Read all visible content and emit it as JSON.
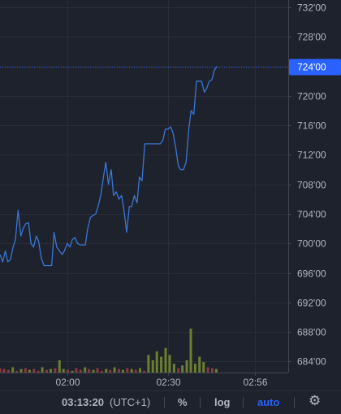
{
  "chart_data": {
    "type": "line",
    "price_axis": {
      "ticks": [
        "732'00",
        "728'00",
        "724'00",
        "720'00",
        "716'00",
        "712'00",
        "708'00",
        "704'00",
        "700'00",
        "696'00",
        "692'00",
        "688'00",
        "684'00"
      ],
      "tick_values": [
        732,
        728,
        724,
        720,
        716,
        712,
        708,
        704,
        700,
        696,
        692,
        688,
        684
      ],
      "range": [
        682.5,
        733.0
      ]
    },
    "time_axis": {
      "labels": [
        "02:00",
        "02:30",
        "02:56"
      ],
      "label_minutes": [
        120,
        150,
        176
      ],
      "range_minutes": [
        100,
        185.8
      ]
    },
    "last_price": {
      "label": "724'00",
      "value": 724.0
    },
    "series": [
      {
        "color": "#3a76d8",
        "points": [
          [
            100,
            698.5
          ],
          [
            100.8,
            697.5
          ],
          [
            101.6,
            699.0
          ],
          [
            102.3,
            697.5
          ],
          [
            103.1,
            697.8
          ],
          [
            103.9,
            699.5
          ],
          [
            104.6,
            700.5
          ],
          [
            105.4,
            704.5
          ],
          [
            106.2,
            701.0
          ],
          [
            106.9,
            702.0
          ],
          [
            107.7,
            702.7
          ],
          [
            108.5,
            702.8
          ],
          [
            109.2,
            700.0
          ],
          [
            110.0,
            699.5
          ],
          [
            110.8,
            701.0
          ],
          [
            111.5,
            700.3
          ],
          [
            112.3,
            698.0
          ],
          [
            113.1,
            697.0
          ],
          [
            113.8,
            697.0
          ],
          [
            114.6,
            697.0
          ],
          [
            115.4,
            697.0
          ],
          [
            116.1,
            701.5
          ],
          [
            116.9,
            699.5
          ],
          [
            117.7,
            699.0
          ],
          [
            118.5,
            698.5
          ],
          [
            119.2,
            699.0
          ],
          [
            120.0,
            700.0
          ],
          [
            120.8,
            699.5
          ],
          [
            121.5,
            700.5
          ],
          [
            122.3,
            700.8
          ],
          [
            123.1,
            700.0
          ],
          [
            123.8,
            699.8
          ],
          [
            124.6,
            699.8
          ],
          [
            125.4,
            699.8
          ],
          [
            126.1,
            702.0
          ],
          [
            126.9,
            703.5
          ],
          [
            127.7,
            703.8
          ],
          [
            128.5,
            704.0
          ],
          [
            129.2,
            705.0
          ],
          [
            130.0,
            706.5
          ],
          [
            130.8,
            709.0
          ],
          [
            131.5,
            711.0
          ],
          [
            132.3,
            708.0
          ],
          [
            133.1,
            710.0
          ],
          [
            133.8,
            706.5
          ],
          [
            134.6,
            707.0
          ],
          [
            135.4,
            706.0
          ],
          [
            136.2,
            706.5
          ],
          [
            136.9,
            704.5
          ],
          [
            137.7,
            701.5
          ],
          [
            138.5,
            705.0
          ],
          [
            139.2,
            705.0
          ],
          [
            140.0,
            706.5
          ],
          [
            140.8,
            705.5
          ],
          [
            141.5,
            709.0
          ],
          [
            142.3,
            708.5
          ],
          [
            143.1,
            713.5
          ],
          [
            143.8,
            713.5
          ],
          [
            144.6,
            713.5
          ],
          [
            145.4,
            713.5
          ],
          [
            146.2,
            713.5
          ],
          [
            146.9,
            713.5
          ],
          [
            147.7,
            713.5
          ],
          [
            148.5,
            714.0
          ],
          [
            149.2,
            715.5
          ],
          [
            150.0,
            715.5
          ],
          [
            150.8,
            715.8
          ],
          [
            151.5,
            715.0
          ],
          [
            152.3,
            713.0
          ],
          [
            153.1,
            710.5
          ],
          [
            153.8,
            710.0
          ],
          [
            154.6,
            710.0
          ],
          [
            155.4,
            711.0
          ],
          [
            156.2,
            715.5
          ],
          [
            156.9,
            718.0
          ],
          [
            157.7,
            717.5
          ],
          [
            158.5,
            722.0
          ],
          [
            159.2,
            722.0
          ],
          [
            160.0,
            722.0
          ],
          [
            160.8,
            720.5
          ],
          [
            161.5,
            721.0
          ],
          [
            162.3,
            722.0
          ],
          [
            163.1,
            722.2
          ],
          [
            163.8,
            723.5
          ],
          [
            164.6,
            724.0
          ]
        ]
      }
    ],
    "volume": {
      "series": [
        {
          "m": 100.0,
          "v": 5,
          "c": "red"
        },
        {
          "m": 101.2,
          "v": 4,
          "c": "red"
        },
        {
          "m": 102.5,
          "v": 3,
          "c": "red"
        },
        {
          "m": 103.8,
          "v": 6,
          "c": "green"
        },
        {
          "m": 105.0,
          "v": 2,
          "c": "red"
        },
        {
          "m": 106.3,
          "v": 4,
          "c": "green"
        },
        {
          "m": 107.6,
          "v": 5,
          "c": "red"
        },
        {
          "m": 108.8,
          "v": 3,
          "c": "green"
        },
        {
          "m": 110.1,
          "v": 4,
          "c": "red"
        },
        {
          "m": 111.4,
          "v": 2,
          "c": "red"
        },
        {
          "m": 112.6,
          "v": 6,
          "c": "green"
        },
        {
          "m": 113.9,
          "v": 3,
          "c": "red"
        },
        {
          "m": 115.1,
          "v": 4,
          "c": "green"
        },
        {
          "m": 116.4,
          "v": 5,
          "c": "red"
        },
        {
          "m": 117.7,
          "v": 14,
          "c": "green"
        },
        {
          "m": 118.9,
          "v": 4,
          "c": "green"
        },
        {
          "m": 120.2,
          "v": 3,
          "c": "red"
        },
        {
          "m": 121.5,
          "v": 2,
          "c": "green"
        },
        {
          "m": 122.7,
          "v": 5,
          "c": "red"
        },
        {
          "m": 124.0,
          "v": 3,
          "c": "red"
        },
        {
          "m": 125.3,
          "v": 6,
          "c": "green"
        },
        {
          "m": 126.5,
          "v": 4,
          "c": "red"
        },
        {
          "m": 127.8,
          "v": 3,
          "c": "green"
        },
        {
          "m": 129.0,
          "v": 5,
          "c": "red"
        },
        {
          "m": 130.3,
          "v": 2,
          "c": "red"
        },
        {
          "m": 131.6,
          "v": 4,
          "c": "green"
        },
        {
          "m": 132.8,
          "v": 3,
          "c": "red"
        },
        {
          "m": 134.1,
          "v": 6,
          "c": "green"
        },
        {
          "m": 135.4,
          "v": 4,
          "c": "red"
        },
        {
          "m": 136.6,
          "v": 3,
          "c": "green"
        },
        {
          "m": 137.9,
          "v": 5,
          "c": "red"
        },
        {
          "m": 139.2,
          "v": 4,
          "c": "green"
        },
        {
          "m": 140.4,
          "v": 3,
          "c": "red"
        },
        {
          "m": 141.7,
          "v": 5,
          "c": "green"
        },
        {
          "m": 142.9,
          "v": 2,
          "c": "red"
        },
        {
          "m": 144.2,
          "v": 20,
          "c": "green"
        },
        {
          "m": 145.5,
          "v": 14,
          "c": "green"
        },
        {
          "m": 146.7,
          "v": 24,
          "c": "green"
        },
        {
          "m": 148.0,
          "v": 18,
          "c": "green"
        },
        {
          "m": 149.3,
          "v": 28,
          "c": "green"
        },
        {
          "m": 150.5,
          "v": 20,
          "c": "green"
        },
        {
          "m": 151.8,
          "v": 10,
          "c": "green"
        },
        {
          "m": 153.1,
          "v": 5,
          "c": "red"
        },
        {
          "m": 154.3,
          "v": 8,
          "c": "green"
        },
        {
          "m": 155.6,
          "v": 14,
          "c": "green"
        },
        {
          "m": 156.8,
          "v": 50,
          "c": "green"
        },
        {
          "m": 158.1,
          "v": 10,
          "c": "green"
        },
        {
          "m": 159.4,
          "v": 18,
          "c": "green"
        },
        {
          "m": 160.6,
          "v": 12,
          "c": "green"
        },
        {
          "m": 161.9,
          "v": 6,
          "c": "red"
        },
        {
          "m": 163.2,
          "v": 5,
          "c": "red"
        },
        {
          "m": 164.4,
          "v": 4,
          "c": "green"
        }
      ],
      "colors": {
        "green": "#6d7f2e",
        "red": "#8b3a3e"
      }
    }
  },
  "bottom_bar": {
    "time": "03:13:20",
    "timezone": "(UTC+1)",
    "percent": "%",
    "log": "log",
    "auto": "auto",
    "settings_icon": "gear-icon",
    "auto_color": "#2962ff"
  }
}
